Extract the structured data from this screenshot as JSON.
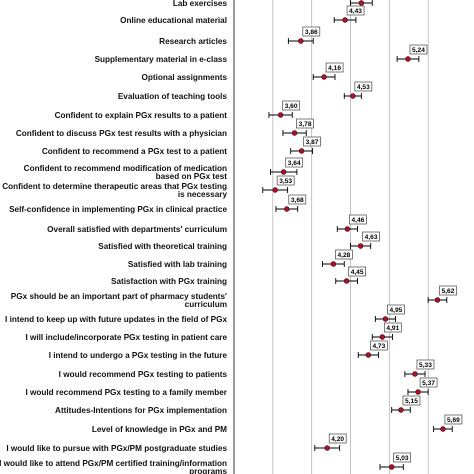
{
  "chart_data": {
    "type": "scatter",
    "orientation": "horizontal",
    "error_bars": true,
    "grid": "vertical",
    "xlim": [
      3.0,
      6.0
    ],
    "categories": [
      "Lab exercises",
      "Online educational material",
      "Research articles",
      "Supplementary material in e-class",
      "Optional assignments",
      "Evaluation of teaching tools",
      "Confident to explain PGx results to a patient",
      "Confident to discuss PGx test results with a physician",
      "Confident to recommend a PGx test to a patient",
      "Confident to recommend modification of medication based on PGx test",
      "Confident to determine therapeutic areas that PGx testing is necessary",
      "Self-confidence in implementing PGx in clinical practice",
      "Overall satisfied with departments' curriculum",
      "Satisfied with theoretical training",
      "Satisfied with lab training",
      "Satisfaction with PGx training",
      "PGx should be an important part of pharmacy students' curriculum",
      "I intend to keep up with future updates in the field of PGx",
      "I will include/incorporate PGx testing in patient care",
      "I intend to undergo a PGx testing in the future",
      "I would recommend PGx testing to patients",
      "I would recommend PGx testing to a family member",
      "Attitudes-Intentions for PGx implementation",
      "Level of knowledge in PGx and PM",
      "I would like to pursue with PGx/PM postgraduate studies",
      "I would like to attend PGx/PM certified training/information programs"
    ],
    "values": [
      4.64,
      4.43,
      3.86,
      5.24,
      4.16,
      4.53,
      3.6,
      3.78,
      3.87,
      3.64,
      3.53,
      3.68,
      4.46,
      4.63,
      4.28,
      4.45,
      5.62,
      4.95,
      4.91,
      4.73,
      5.33,
      5.37,
      5.15,
      5.69,
      4.2,
      5.03
    ],
    "labels": [
      "",
      "4,43",
      "3,86",
      "5,24",
      "4,16",
      "4,53",
      "3,60",
      "3,78",
      "3,87",
      "3,64",
      "3,53",
      "3,68",
      "4,46",
      "4,63",
      "4,28",
      "4,45",
      "5,62",
      "4,95",
      "4,91",
      "4,73",
      "5,33",
      "5,37",
      "5,15",
      "5,69",
      "4,20",
      "5,03"
    ],
    "ci_low": [
      4.5,
      4.29,
      3.7,
      5.1,
      4.02,
      4.42,
      3.45,
      3.63,
      3.73,
      3.47,
      3.37,
      3.54,
      4.33,
      4.5,
      4.14,
      4.31,
      5.5,
      4.82,
      4.78,
      4.6,
      5.2,
      5.24,
      5.03,
      5.57,
      4.04,
      4.88
    ],
    "ci_high": [
      4.78,
      4.57,
      4.02,
      5.38,
      4.3,
      4.64,
      3.75,
      3.93,
      4.01,
      3.81,
      3.69,
      3.82,
      4.59,
      4.76,
      4.42,
      4.59,
      5.74,
      5.08,
      5.04,
      4.86,
      5.46,
      5.5,
      5.27,
      5.81,
      4.36,
      5.18
    ]
  },
  "colors": {
    "point": "#b0102b",
    "grid": "#b4b4b4"
  }
}
